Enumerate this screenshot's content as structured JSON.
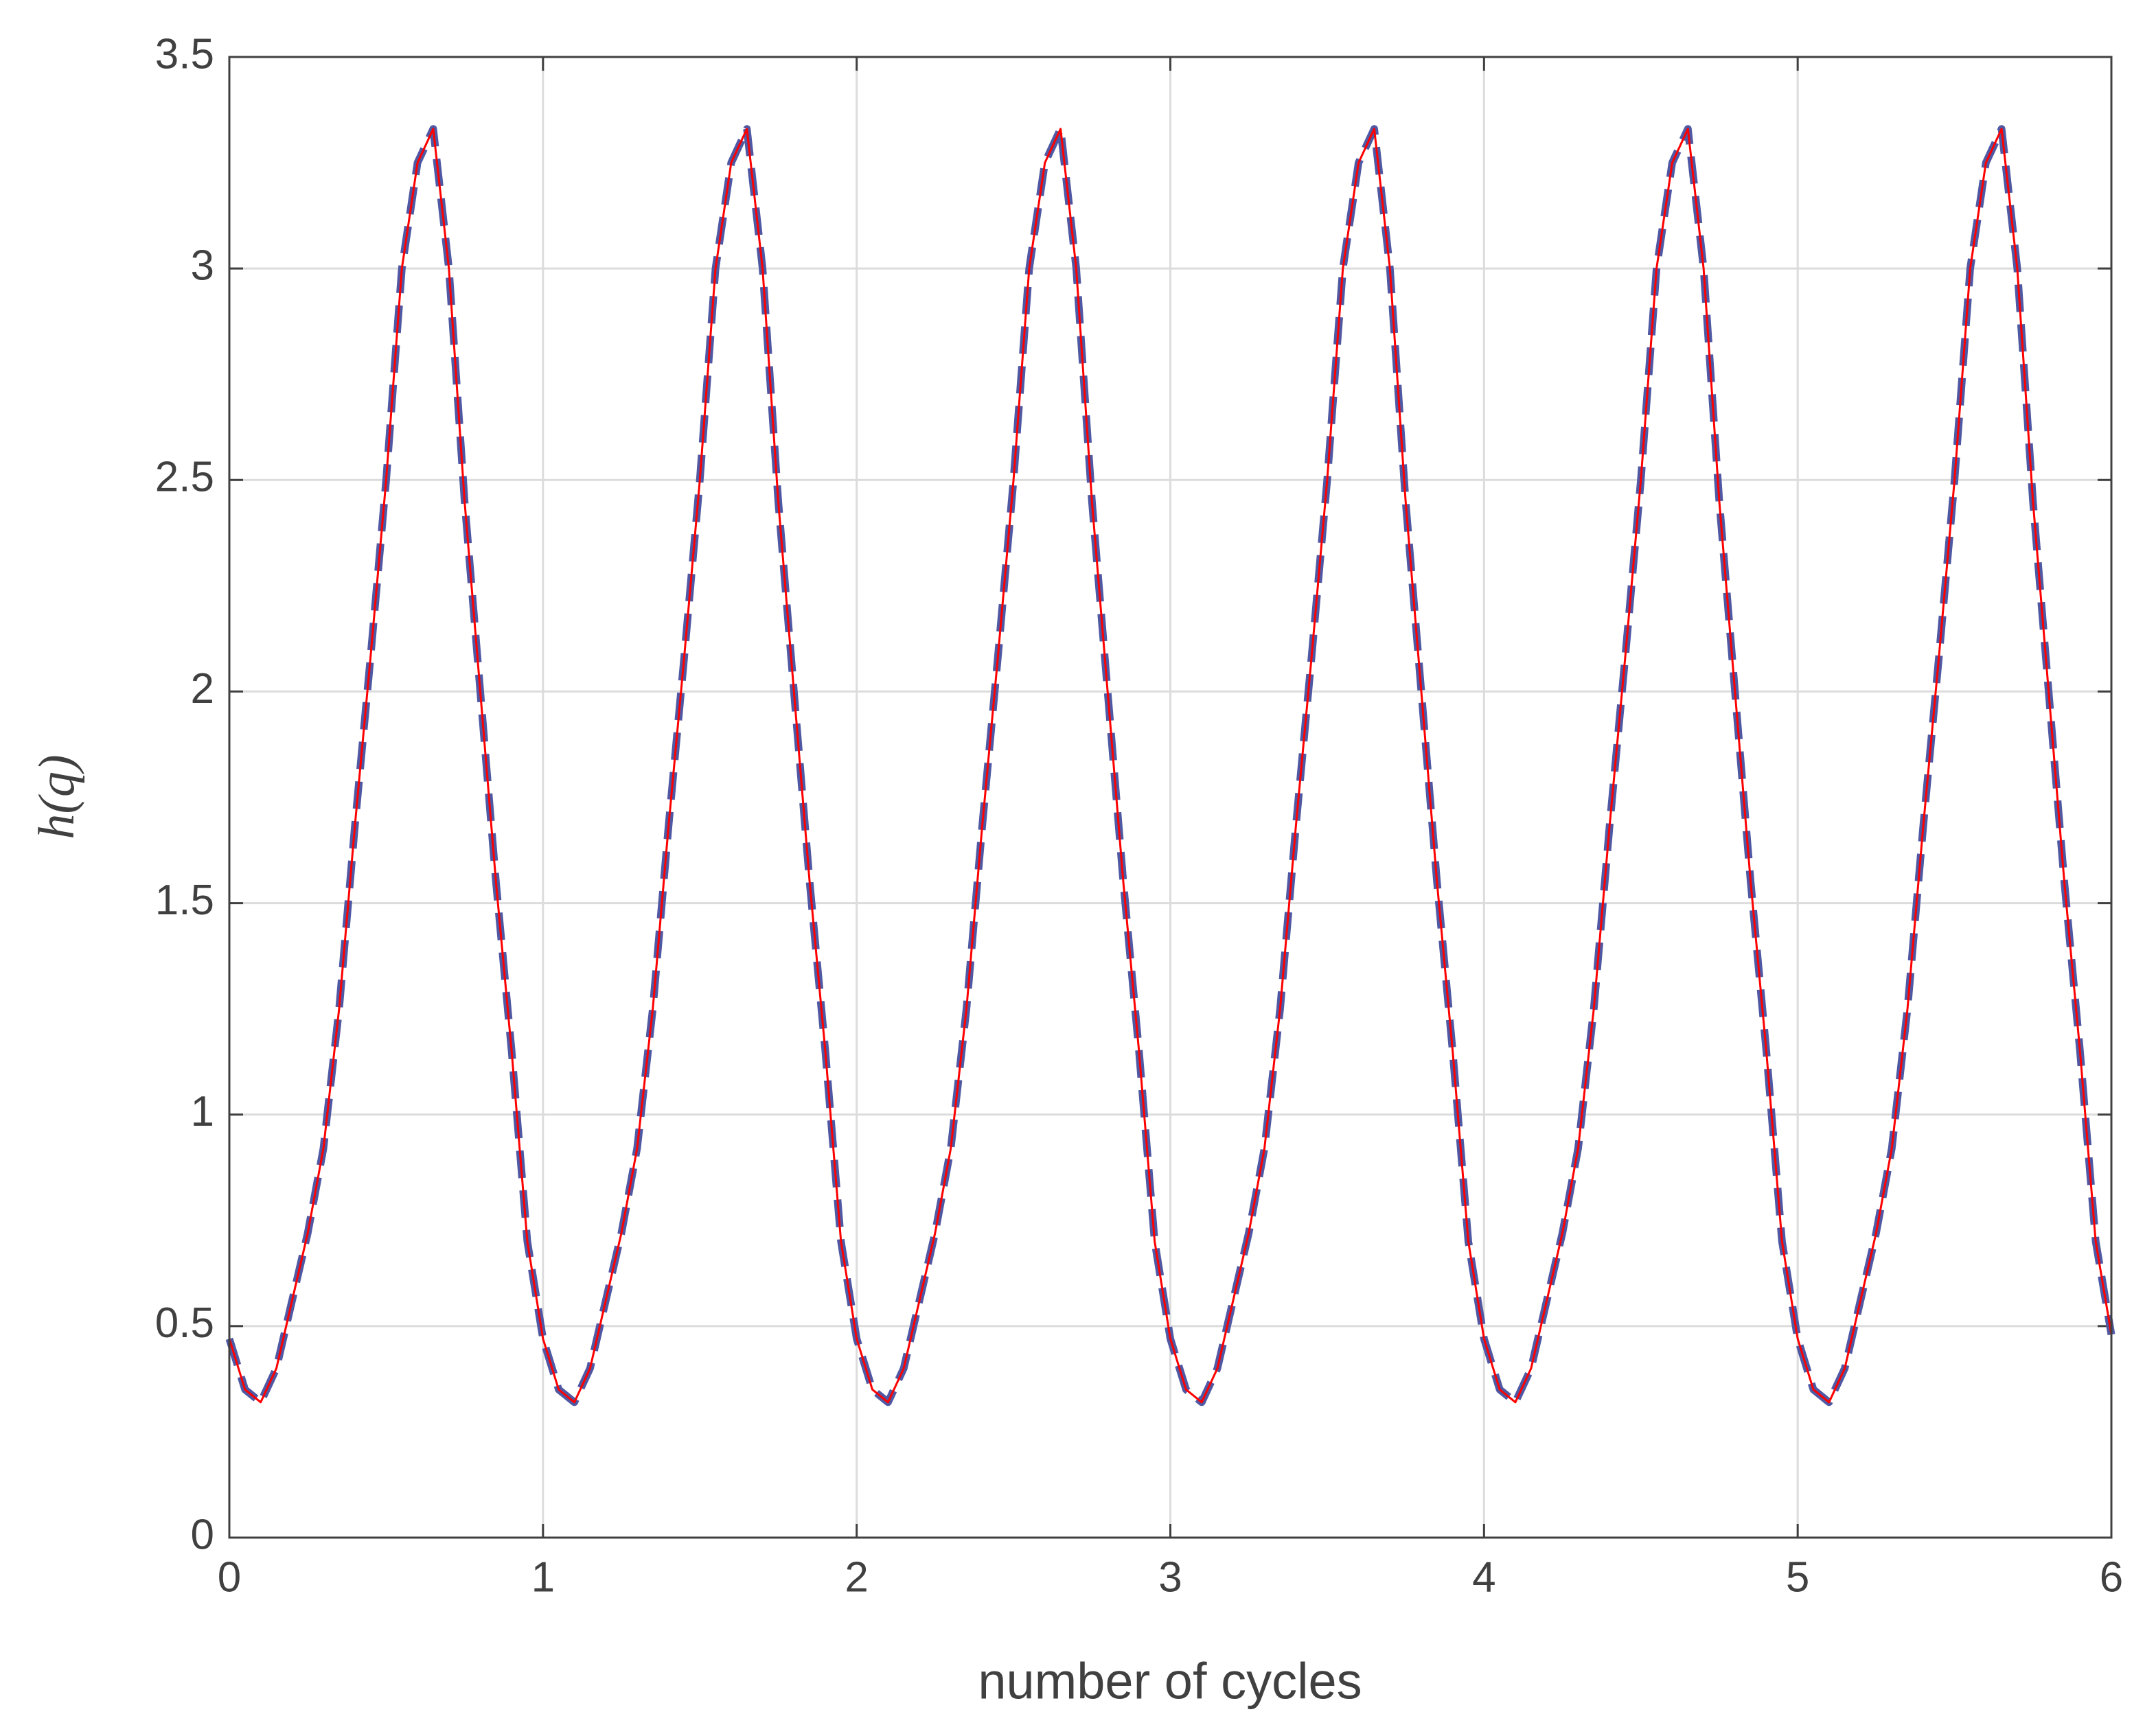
{
  "chart_data": {
    "type": "line",
    "xlabel": "number of cycles",
    "ylabel": "h(q)",
    "xlim": [
      0,
      6
    ],
    "ylim": [
      0,
      3.5
    ],
    "xticks": [
      0,
      1,
      2,
      3,
      4,
      5,
      6
    ],
    "yticks": [
      0,
      0.5,
      1,
      1.5,
      2,
      2.5,
      3,
      3.5
    ],
    "grid": true,
    "x": [
      0,
      0.05,
      0.1,
      0.15,
      0.2,
      0.25,
      0.3,
      0.35,
      0.4,
      0.45,
      0.5,
      0.55,
      0.6,
      0.65,
      0.7,
      0.75,
      0.8,
      0.85,
      0.9,
      0.95,
      1,
      1.05,
      1.1,
      1.15,
      1.2,
      1.25,
      1.3,
      1.35,
      1.4,
      1.45,
      1.5,
      1.55,
      1.6,
      1.65,
      1.7,
      1.75,
      1.8,
      1.85,
      1.9,
      1.95,
      2,
      2.05,
      2.1,
      2.15,
      2.2,
      2.25,
      2.3,
      2.35,
      2.4,
      2.45,
      2.5,
      2.55,
      2.6,
      2.65,
      2.7,
      2.75,
      2.8,
      2.85,
      2.9,
      2.95,
      3,
      3.05,
      3.1,
      3.15,
      3.2,
      3.25,
      3.3,
      3.35,
      3.4,
      3.45,
      3.5,
      3.55,
      3.6,
      3.65,
      3.7,
      3.75,
      3.8,
      3.85,
      3.9,
      3.95,
      4,
      4.05,
      4.1,
      4.15,
      4.2,
      4.25,
      4.3,
      4.35,
      4.4,
      4.45,
      4.5,
      4.55,
      4.6,
      4.65,
      4.7,
      4.75,
      4.8,
      4.85,
      4.9,
      4.95,
      5,
      5.05,
      5.1,
      5.15,
      5.2,
      5.25,
      5.3,
      5.35,
      5.4,
      5.45,
      5.5,
      5.55,
      5.6,
      5.65,
      5.7,
      5.75,
      5.8,
      5.85,
      5.9,
      5.95,
      6
    ],
    "series": [
      {
        "color": "#4f58a3",
        "dashed": true,
        "values": [
          0.47,
          0.35,
          0.32,
          0.4,
          0.56,
          0.72,
          0.92,
          1.25,
          1.68,
          2.08,
          2.5,
          3,
          3.25,
          3.33,
          3,
          2.45,
          2,
          1.55,
          1.15,
          0.7,
          0.47,
          0.35,
          0.32,
          0.4,
          0.56,
          0.72,
          0.92,
          1.25,
          1.68,
          2.08,
          2.5,
          3,
          3.25,
          3.33,
          3,
          2.45,
          2,
          1.55,
          1.15,
          0.7,
          0.47,
          0.35,
          0.32,
          0.4,
          0.56,
          0.72,
          0.92,
          1.25,
          1.68,
          2.08,
          2.5,
          3,
          3.25,
          3.33,
          3,
          2.45,
          2,
          1.55,
          1.15,
          0.7,
          0.47,
          0.35,
          0.32,
          0.4,
          0.56,
          0.72,
          0.92,
          1.25,
          1.68,
          2.08,
          2.5,
          3,
          3.25,
          3.33,
          3,
          2.45,
          2,
          1.55,
          1.15,
          0.7,
          0.47,
          0.35,
          0.32,
          0.4,
          0.56,
          0.72,
          0.92,
          1.25,
          1.68,
          2.08,
          2.5,
          3,
          3.25,
          3.33,
          3,
          2.45,
          2,
          1.55,
          1.15,
          0.7,
          0.47,
          0.35,
          0.32,
          0.4,
          0.56,
          0.72,
          0.92,
          1.25,
          1.68,
          2.08,
          2.5,
          3,
          3.25,
          3.33,
          3,
          2.45,
          2,
          1.55,
          1.15,
          0.7,
          0.48
        ]
      },
      {
        "color": "#ff0000",
        "dashed": false,
        "values": [
          0.47,
          0.35,
          0.32,
          0.4,
          0.56,
          0.72,
          0.92,
          1.25,
          1.68,
          2.08,
          2.5,
          3,
          3.25,
          3.33,
          3,
          2.45,
          2,
          1.55,
          1.15,
          0.7,
          0.47,
          0.35,
          0.32,
          0.4,
          0.56,
          0.72,
          0.92,
          1.25,
          1.68,
          2.08,
          2.5,
          3,
          3.25,
          3.33,
          3,
          2.45,
          2,
          1.55,
          1.15,
          0.7,
          0.47,
          0.35,
          0.32,
          0.4,
          0.56,
          0.72,
          0.92,
          1.25,
          1.68,
          2.08,
          2.5,
          3,
          3.25,
          3.33,
          3,
          2.45,
          2,
          1.55,
          1.15,
          0.7,
          0.47,
          0.35,
          0.32,
          0.4,
          0.56,
          0.72,
          0.92,
          1.25,
          1.68,
          2.08,
          2.5,
          3,
          3.25,
          3.33,
          3,
          2.45,
          2,
          1.55,
          1.15,
          0.7,
          0.47,
          0.35,
          0.32,
          0.4,
          0.56,
          0.72,
          0.92,
          1.25,
          1.68,
          2.08,
          2.5,
          3,
          3.25,
          3.33,
          3,
          2.45,
          2,
          1.55,
          1.15,
          0.7,
          0.47,
          0.35,
          0.32,
          0.4,
          0.56,
          0.72,
          0.92,
          1.25,
          1.68,
          2.08,
          2.5,
          3,
          3.25,
          3.33,
          3,
          2.45,
          2,
          1.55,
          1.15,
          0.7,
          0.48
        ]
      }
    ]
  }
}
